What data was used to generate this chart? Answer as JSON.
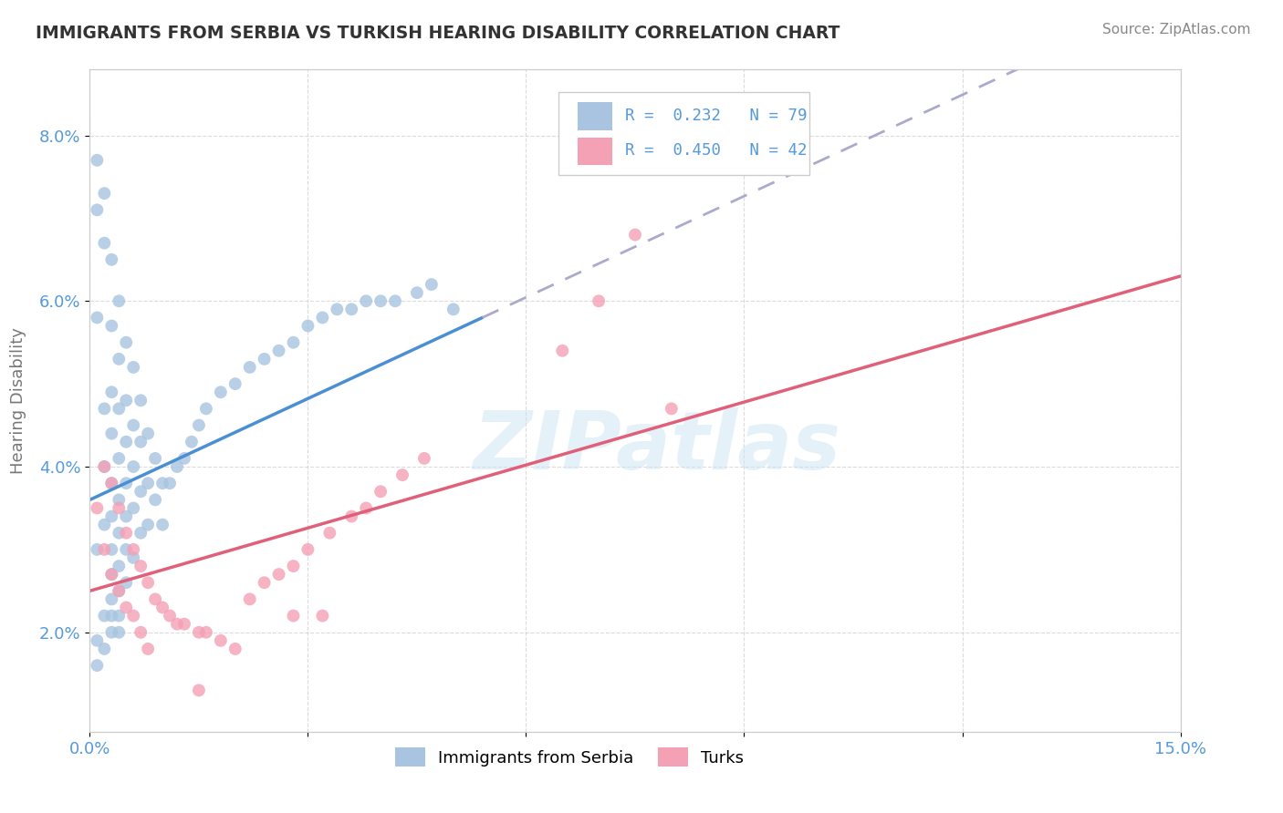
{
  "title": "IMMIGRANTS FROM SERBIA VS TURKISH HEARING DISABILITY CORRELATION CHART",
  "source": "Source: ZipAtlas.com",
  "ylabel": "Hearing Disability",
  "xlim": [
    0.0,
    0.15
  ],
  "ylim": [
    0.008,
    0.088
  ],
  "xtick_positions": [
    0.0,
    0.03,
    0.06,
    0.09,
    0.12,
    0.15
  ],
  "xtick_labels": [
    "0.0%",
    "",
    "",
    "",
    "",
    "15.0%"
  ],
  "ytick_positions": [
    0.02,
    0.04,
    0.06,
    0.08
  ],
  "ytick_labels": [
    "2.0%",
    "4.0%",
    "6.0%",
    "8.0%"
  ],
  "r_serbia": 0.232,
  "n_serbia": 79,
  "r_turks": 0.45,
  "n_turks": 42,
  "serbia_color": "#a8c4e0",
  "turks_color": "#f4a0b5",
  "serbia_line_color": "#4a8fd4",
  "turks_line_color": "#e0607a",
  "dashed_line_color": "#aaaacc",
  "watermark": "ZIPatlas",
  "bg_color": "#ffffff",
  "grid_color": "#cccccc",
  "axis_color": "#5599dd",
  "title_color": "#333333",
  "source_color": "#888888",
  "ylabel_color": "#777777",
  "serbia_line_x0": 0.0,
  "serbia_line_x1": 0.054,
  "serbia_line_y0": 0.036,
  "serbia_line_y1": 0.058,
  "turks_line_x0": 0.0,
  "turks_line_x1": 0.15,
  "turks_line_y0": 0.025,
  "turks_line_y1": 0.063,
  "serbia_x": [
    0.001,
    0.001,
    0.001,
    0.001,
    0.002,
    0.002,
    0.002,
    0.002,
    0.002,
    0.002,
    0.003,
    0.003,
    0.003,
    0.003,
    0.003,
    0.003,
    0.003,
    0.003,
    0.003,
    0.003,
    0.004,
    0.004,
    0.004,
    0.004,
    0.004,
    0.004,
    0.004,
    0.004,
    0.004,
    0.004,
    0.005,
    0.005,
    0.005,
    0.005,
    0.005,
    0.005,
    0.005,
    0.006,
    0.006,
    0.006,
    0.006,
    0.006,
    0.007,
    0.007,
    0.007,
    0.007,
    0.008,
    0.008,
    0.008,
    0.009,
    0.009,
    0.01,
    0.01,
    0.011,
    0.012,
    0.013,
    0.014,
    0.015,
    0.016,
    0.018,
    0.02,
    0.022,
    0.024,
    0.026,
    0.028,
    0.03,
    0.032,
    0.034,
    0.036,
    0.038,
    0.04,
    0.042,
    0.045,
    0.047,
    0.05,
    0.001,
    0.001,
    0.002,
    0.003
  ],
  "serbia_y": [
    0.077,
    0.071,
    0.058,
    0.03,
    0.073,
    0.067,
    0.047,
    0.04,
    0.033,
    0.022,
    0.065,
    0.057,
    0.049,
    0.044,
    0.038,
    0.034,
    0.03,
    0.027,
    0.024,
    0.022,
    0.06,
    0.053,
    0.047,
    0.041,
    0.036,
    0.032,
    0.028,
    0.025,
    0.022,
    0.02,
    0.055,
    0.048,
    0.043,
    0.038,
    0.034,
    0.03,
    0.026,
    0.052,
    0.045,
    0.04,
    0.035,
    0.029,
    0.048,
    0.043,
    0.037,
    0.032,
    0.044,
    0.038,
    0.033,
    0.041,
    0.036,
    0.038,
    0.033,
    0.038,
    0.04,
    0.041,
    0.043,
    0.045,
    0.047,
    0.049,
    0.05,
    0.052,
    0.053,
    0.054,
    0.055,
    0.057,
    0.058,
    0.059,
    0.059,
    0.06,
    0.06,
    0.06,
    0.061,
    0.062,
    0.059,
    0.019,
    0.016,
    0.018,
    0.02
  ],
  "turks_x": [
    0.001,
    0.002,
    0.002,
    0.003,
    0.003,
    0.004,
    0.004,
    0.005,
    0.005,
    0.006,
    0.006,
    0.007,
    0.007,
    0.008,
    0.008,
    0.009,
    0.01,
    0.011,
    0.012,
    0.013,
    0.015,
    0.016,
    0.018,
    0.02,
    0.022,
    0.024,
    0.026,
    0.028,
    0.03,
    0.033,
    0.036,
    0.038,
    0.04,
    0.043,
    0.046,
    0.065,
    0.07,
    0.075,
    0.08,
    0.028,
    0.032,
    0.015
  ],
  "turks_y": [
    0.035,
    0.04,
    0.03,
    0.038,
    0.027,
    0.035,
    0.025,
    0.032,
    0.023,
    0.03,
    0.022,
    0.028,
    0.02,
    0.026,
    0.018,
    0.024,
    0.023,
    0.022,
    0.021,
    0.021,
    0.02,
    0.02,
    0.019,
    0.018,
    0.024,
    0.026,
    0.027,
    0.028,
    0.03,
    0.032,
    0.034,
    0.035,
    0.037,
    0.039,
    0.041,
    0.054,
    0.06,
    0.068,
    0.047,
    0.022,
    0.022,
    0.013
  ]
}
